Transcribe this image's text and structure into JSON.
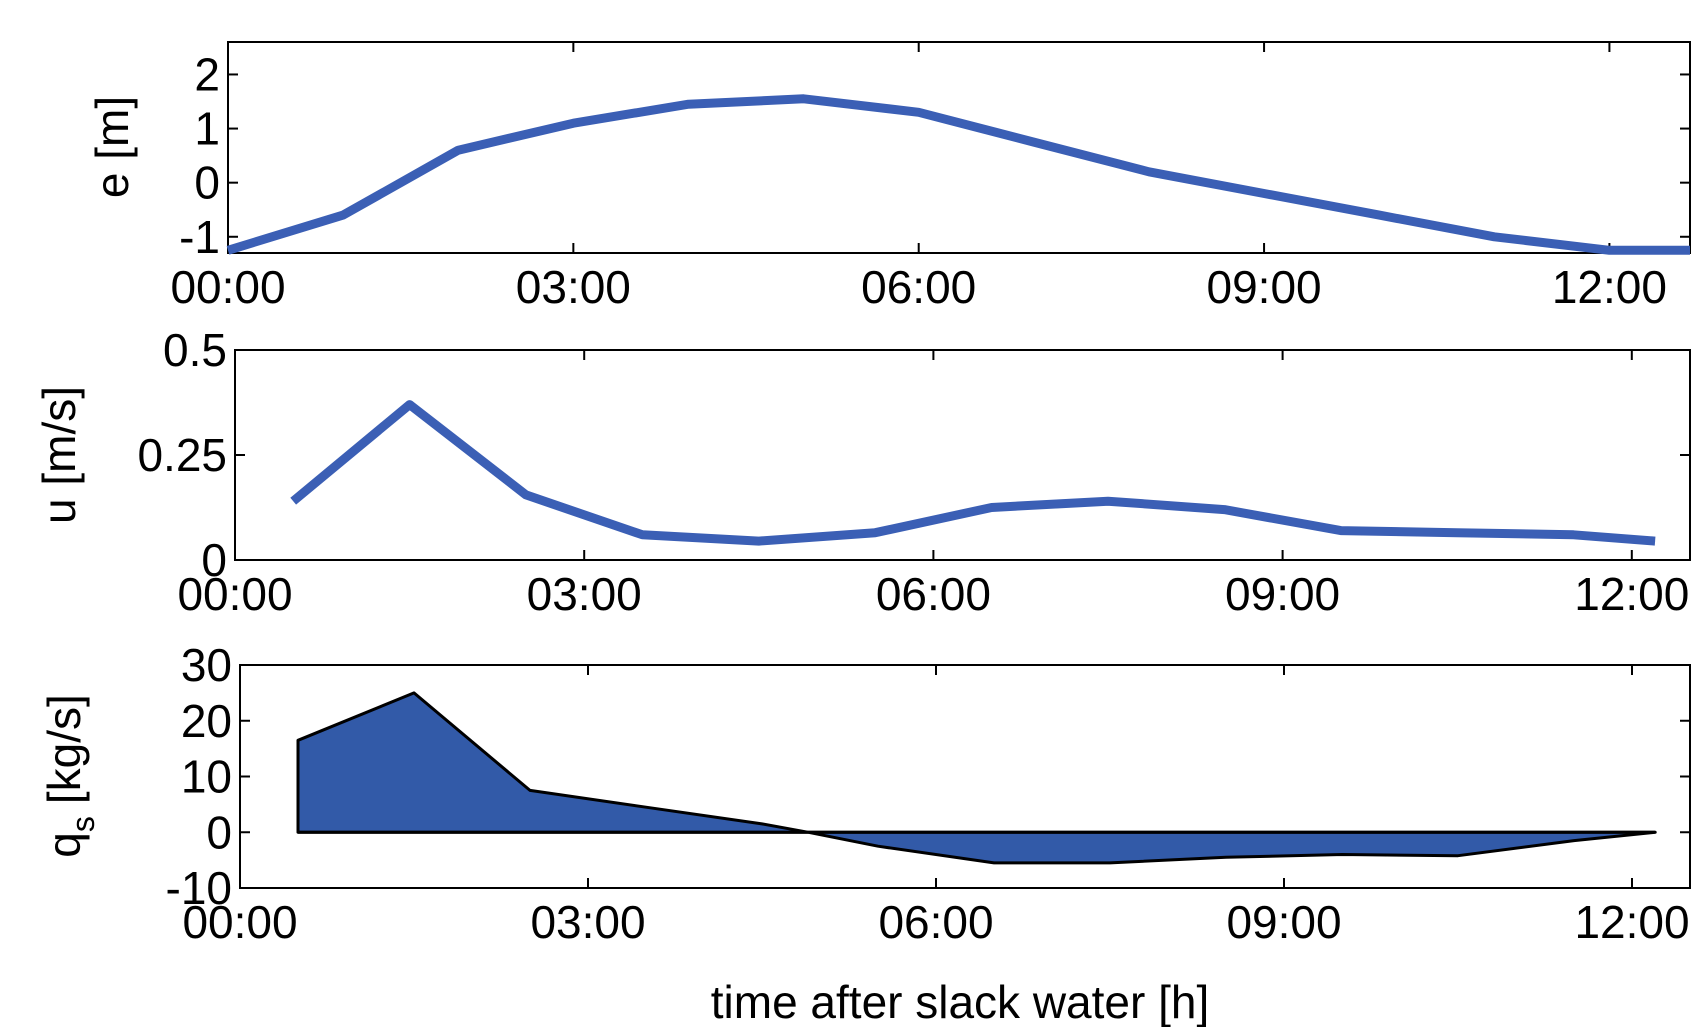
{
  "chart_data": [
    {
      "type": "line",
      "ylabel": "e [m]",
      "xlabel": "",
      "xlim": [
        0,
        12.7
      ],
      "ylim": [
        -1.3,
        2.6
      ],
      "xticks": [
        0,
        3,
        6,
        9,
        12
      ],
      "xtick_labels": [
        "00:00",
        "03:00",
        "06:00",
        "09:00",
        "12:00"
      ],
      "yticks": [
        -1,
        0,
        1,
        2
      ],
      "ytick_labels": [
        "-1",
        "0",
        "1",
        "2"
      ],
      "color": "#3b5fb5",
      "series": [
        {
          "x": [
            0,
            1,
            2,
            3,
            4,
            5,
            6,
            7,
            8,
            9,
            10,
            11,
            12,
            12.7
          ],
          "values": [
            -1.25,
            -0.6,
            0.6,
            1.1,
            1.45,
            1.55,
            1.3,
            0.75,
            0.2,
            -0.2,
            -0.6,
            -1.0,
            -1.25,
            -1.25
          ]
        }
      ]
    },
    {
      "type": "line",
      "ylabel": "u [m/s]",
      "xlabel": "",
      "xlim": [
        0,
        12.5
      ],
      "ylim": [
        0,
        0.5
      ],
      "xticks": [
        0,
        3,
        6,
        9,
        12
      ],
      "xtick_labels": [
        "00:00",
        "03:00",
        "06:00",
        "09:00",
        "12:00"
      ],
      "yticks": [
        0,
        0.25,
        0.5
      ],
      "ytick_labels": [
        "0",
        "0.25",
        "0.5"
      ],
      "color": "#3b5fb5",
      "series": [
        {
          "x": [
            0.5,
            1.5,
            2.5,
            3.5,
            4.5,
            5.5,
            6.5,
            7.5,
            8.5,
            9.5,
            10.5,
            11.5,
            12.2
          ],
          "values": [
            0.14,
            0.37,
            0.155,
            0.06,
            0.045,
            0.065,
            0.125,
            0.14,
            0.12,
            0.07,
            0.065,
            0.06,
            0.045
          ]
        }
      ]
    },
    {
      "type": "area",
      "ylabel": "q",
      "ylabel_sub": "s",
      "ylabel_unit": "[kg/s]",
      "xlabel": "time after slack water [h]",
      "xlim": [
        0,
        12.5
      ],
      "ylim": [
        -10,
        30
      ],
      "xticks": [
        0,
        3,
        6,
        9,
        12
      ],
      "xtick_labels": [
        "00:00",
        "03:00",
        "06:00",
        "09:00",
        "12:00"
      ],
      "yticks": [
        -10,
        0,
        10,
        20,
        30
      ],
      "ytick_labels": [
        "-10",
        "0",
        "10",
        "20",
        "30"
      ],
      "color": "#325aa8",
      "series": [
        {
          "x": [
            0.5,
            1.5,
            2.5,
            3.5,
            4.5,
            4.9,
            5.5,
            6.5,
            7.5,
            8.5,
            9.5,
            10.5,
            11.5,
            12.2
          ],
          "values": [
            16.5,
            25,
            7.5,
            4.5,
            1.5,
            0,
            -2.5,
            -5.5,
            -5.5,
            -4.5,
            -4,
            -4.2,
            -1.5,
            0
          ]
        }
      ]
    }
  ]
}
